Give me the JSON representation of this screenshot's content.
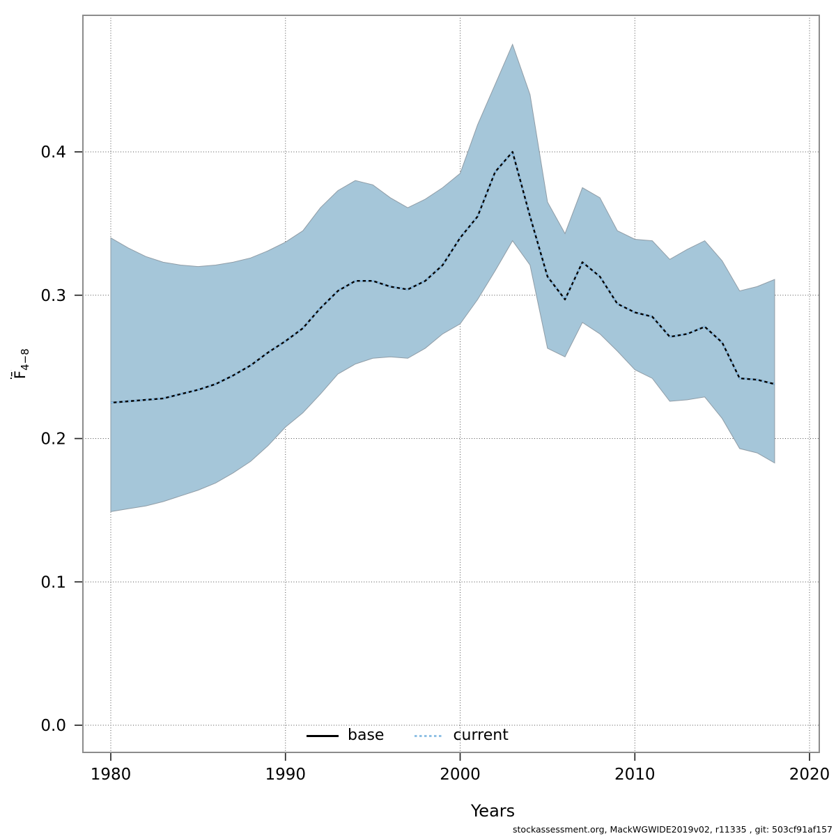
{
  "figure": {
    "xlabel": "Years",
    "ylabel_main": "F̄",
    "ylabel_sub": "4−8",
    "footer": "stockassessment.org, MackWGWIDE2019v02, r11335 , git: 503cf91af157"
  },
  "legend": {
    "base_label": "base",
    "current_label": "current"
  },
  "colors": {
    "band_fill": "#a5c6d9",
    "band_edge": "#8f9ca6",
    "base_line": "#000000",
    "current_line": "#87bae2",
    "grid": "#4b4b4b",
    "plot_border": "#8c8c8c"
  },
  "chart_data": {
    "type": "line",
    "subtype": "line-with-confidence-band",
    "title": "",
    "xlabel": "Years",
    "ylabel": "F̄4−8",
    "grid": "dotted",
    "legend_position": "bottom-center-inside",
    "x_ticks": [
      1980,
      1990,
      2000,
      2010,
      2020
    ],
    "x_tick_labels": [
      "1980",
      "1990",
      "2000",
      "2010",
      "2020"
    ],
    "y_ticks": [
      0,
      0.1,
      0.2,
      0.3,
      0.4
    ],
    "y_tick_labels": [
      "0.0",
      "0.1",
      "0.2",
      "0.3",
      "0.4"
    ],
    "xlim": [
      1978.4,
      2020.6
    ],
    "ylim": [
      -0.019,
      0.495
    ],
    "years": [
      1980,
      1981,
      1982,
      1983,
      1984,
      1985,
      1986,
      1987,
      1988,
      1989,
      1990,
      1991,
      1992,
      1993,
      1994,
      1995,
      1996,
      1997,
      1998,
      1999,
      2000,
      2001,
      2002,
      2003,
      2004,
      2005,
      2006,
      2007,
      2008,
      2009,
      2010,
      2011,
      2012,
      2013,
      2014,
      2015,
      2016,
      2017,
      2018
    ],
    "series": [
      {
        "name": "base",
        "line_style": "solid",
        "color": "#000000",
        "values": [
          0.225,
          0.226,
          0.227,
          0.228,
          0.231,
          0.234,
          0.238,
          0.244,
          0.251,
          0.26,
          0.268,
          0.277,
          0.291,
          0.303,
          0.31,
          0.31,
          0.306,
          0.304,
          0.31,
          0.321,
          0.34,
          0.355,
          0.386,
          0.4,
          0.355,
          0.313,
          0.297,
          0.323,
          0.313,
          0.294,
          0.288,
          0.285,
          0.271,
          0.273,
          0.278,
          0.267,
          0.242,
          0.241,
          0.238
        ]
      },
      {
        "name": "current",
        "line_style": "dotted",
        "color": "#87bae2",
        "values": [
          0.225,
          0.226,
          0.227,
          0.228,
          0.231,
          0.234,
          0.238,
          0.244,
          0.251,
          0.26,
          0.268,
          0.277,
          0.291,
          0.303,
          0.31,
          0.31,
          0.306,
          0.304,
          0.31,
          0.321,
          0.34,
          0.355,
          0.386,
          0.4,
          0.355,
          0.313,
          0.297,
          0.323,
          0.313,
          0.294,
          0.288,
          0.285,
          0.271,
          0.273,
          0.278,
          0.267,
          0.242,
          0.241,
          0.238
        ]
      }
    ],
    "band": {
      "belongs_to": "current",
      "fill": "#a5c6d9",
      "upper": [
        0.34,
        0.333,
        0.327,
        0.323,
        0.321,
        0.32,
        0.321,
        0.323,
        0.326,
        0.331,
        0.337,
        0.345,
        0.361,
        0.373,
        0.38,
        0.377,
        0.368,
        0.361,
        0.367,
        0.375,
        0.385,
        0.419,
        0.447,
        0.475,
        0.44,
        0.365,
        0.343,
        0.375,
        0.368,
        0.345,
        0.339,
        0.338,
        0.325,
        0.332,
        0.338,
        0.324,
        0.303,
        0.306,
        0.311
      ],
      "lower": [
        0.149,
        0.151,
        0.153,
        0.156,
        0.16,
        0.164,
        0.169,
        0.176,
        0.184,
        0.195,
        0.208,
        0.218,
        0.231,
        0.245,
        0.252,
        0.256,
        0.257,
        0.256,
        0.263,
        0.273,
        0.28,
        0.297,
        0.317,
        0.338,
        0.321,
        0.263,
        0.257,
        0.281,
        0.273,
        0.261,
        0.248,
        0.242,
        0.226,
        0.227,
        0.229,
        0.214,
        0.193,
        0.19,
        0.183
      ]
    }
  }
}
